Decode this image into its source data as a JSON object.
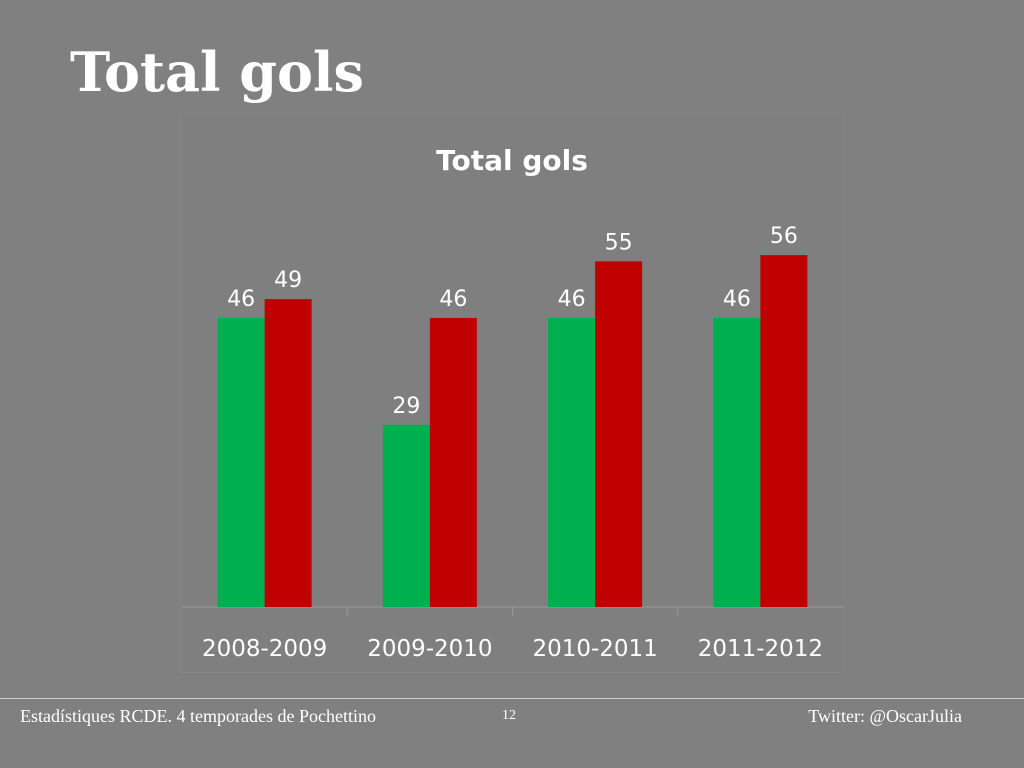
{
  "slide": {
    "title": "Total gols"
  },
  "footer": {
    "left_text": "Estadístiques RCDE. 4 temporades de Pochettino",
    "page_number": "12",
    "right_text": "Twitter: @OscarJulia"
  },
  "chart_data": {
    "type": "bar",
    "title": "Total gols",
    "categories": [
      "2008-2009",
      "2009-2010",
      "2010-2011",
      "2011-2012"
    ],
    "series": [
      {
        "values": [
          46,
          29,
          46,
          46
        ],
        "color": "#00b050"
      },
      {
        "values": [
          49,
          46,
          55,
          56
        ],
        "color": "#c00000"
      }
    ],
    "ylim": [
      0,
      60
    ],
    "grid": false,
    "legend": "none",
    "data_labels": true,
    "colors": {
      "plot_background": "#7f7f7f",
      "plot_border": "#8c8c8c",
      "text": "#ffffff"
    }
  }
}
